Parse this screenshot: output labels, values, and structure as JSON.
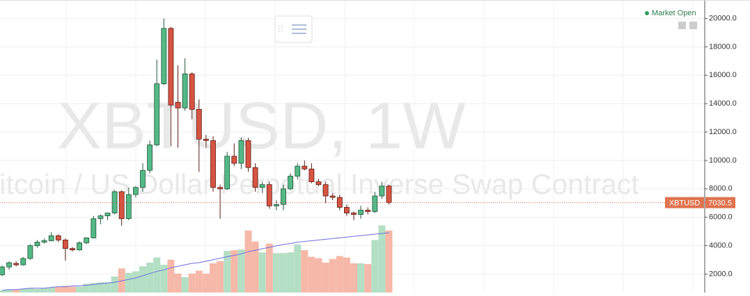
{
  "chart_data": {
    "type": "candlestick",
    "watermark_title": "XBTUSD, 1W",
    "watermark_subtitle": "Bitcoin / US Dollar Perpetual Inverse Swap Contract",
    "status": "Market Open",
    "symbol": "XBTUSD",
    "last_price": 7030.5,
    "up_color": "#53b987",
    "down_color": "#eb4d5c",
    "open": [
      1950,
      2500,
      2750,
      2650,
      3100,
      4000,
      4250,
      4350,
      4700,
      4400,
      3800,
      3700,
      4200,
      4550,
      5900,
      6100,
      6300,
      7800,
      5900,
      7600,
      8100,
      9300,
      11100,
      15400,
      19300,
      14100,
      13700,
      16100,
      13600,
      11500,
      11400,
      8100,
      8000,
      10300,
      9800,
      11400,
      9500,
      8100,
      8300,
      6800,
      6900,
      8000,
      8900,
      9600,
      9400,
      8500,
      8300,
      7500,
      7400,
      6700,
      6300,
      6200,
      6500,
      6400,
      7500,
      8200
    ],
    "high": [
      2600,
      2900,
      2900,
      3200,
      4100,
      4400,
      4500,
      4950,
      4800,
      4500,
      3900,
      4300,
      4600,
      6100,
      6200,
      6300,
      7900,
      7900,
      8100,
      8200,
      9800,
      11400,
      17100,
      20000,
      19400,
      16700,
      17200,
      16200,
      14300,
      11800,
      11700,
      8300,
      10600,
      11200,
      11600,
      11600,
      9800,
      8500,
      8500,
      7200,
      8300,
      9100,
      9800,
      10000,
      9800,
      8700,
      8500,
      7700,
      7600,
      6900,
      6400,
      6800,
      6700,
      7800,
      8500,
      8300
    ],
    "low": [
      1850,
      2300,
      2550,
      2600,
      3000,
      3850,
      4150,
      4300,
      4250,
      2950,
      3600,
      3650,
      4100,
      4500,
      5500,
      5800,
      6200,
      5400,
      5800,
      7400,
      7800,
      9100,
      11000,
      15300,
      11000,
      10900,
      13500,
      12900,
      9200,
      10900,
      7800,
      5900,
      7900,
      9600,
      9400,
      9200,
      7800,
      7700,
      6600,
      6500,
      6500,
      7900,
      8700,
      9300,
      8400,
      8200,
      7000,
      7200,
      6500,
      6100,
      5800,
      5900,
      6200,
      6300,
      7300,
      6900
    ],
    "close": [
      2500,
      2800,
      2650,
      3100,
      4000,
      4250,
      4350,
      4700,
      4400,
      3800,
      3700,
      4200,
      4550,
      5900,
      6100,
      6300,
      7800,
      5900,
      7600,
      8100,
      9300,
      11100,
      15400,
      19300,
      13900,
      13700,
      16100,
      13600,
      11500,
      11400,
      8100,
      8000,
      10300,
      9800,
      11400,
      9500,
      8100,
      8300,
      6800,
      6900,
      8000,
      8900,
      9600,
      9400,
      8500,
      8300,
      7500,
      7400,
      6700,
      6300,
      6200,
      6500,
      6400,
      7500,
      8200,
      7030.5
    ],
    "ylim": [
      700,
      21300
    ],
    "yticks": [
      {
        "value": 2000,
        "label": "2000.0"
      },
      {
        "value": 4000,
        "label": "4000.0"
      },
      {
        "value": 6000,
        "label": "6000.0"
      },
      {
        "value": 8000,
        "label": "8000.0"
      },
      {
        "value": 10000,
        "label": "10000.0"
      },
      {
        "value": 12000,
        "label": "12000.0"
      },
      {
        "value": 14000,
        "label": "14000.0"
      },
      {
        "value": 16000,
        "label": "16000.0"
      },
      {
        "value": 18000,
        "label": "18000.0"
      },
      {
        "value": 20000,
        "label": "20000.0"
      }
    ],
    "grid": true,
    "volume": {
      "values": [
        3,
        4,
        4,
        5,
        6,
        5,
        6,
        7,
        8,
        9,
        8,
        8,
        12,
        13,
        14,
        14,
        22,
        33,
        27,
        29,
        36,
        41,
        48,
        38,
        45,
        26,
        21,
        26,
        30,
        26,
        40,
        43,
        57,
        58,
        59,
        85,
        70,
        55,
        67,
        54,
        54,
        55,
        66,
        58,
        49,
        47,
        41,
        46,
        50,
        48,
        40,
        40,
        39,
        72,
        92,
        85
      ],
      "ylim": [
        0,
        100
      ],
      "up_color": "#b3dfc4",
      "down_color": "#f6b8a8",
      "ma": [
        3,
        4,
        4,
        5,
        6,
        6,
        6,
        7,
        8,
        8,
        9,
        9,
        10,
        11,
        12,
        13,
        14,
        16,
        18,
        20,
        23,
        26,
        29,
        31,
        34,
        36,
        38,
        40,
        41,
        43,
        45,
        47,
        49,
        51,
        53,
        56,
        58,
        60,
        62,
        64,
        66,
        67,
        69,
        70,
        71,
        72,
        73,
        74,
        75,
        76,
        77,
        78,
        79,
        80,
        81,
        82
      ],
      "ma_color": "#6a6ee0"
    }
  }
}
